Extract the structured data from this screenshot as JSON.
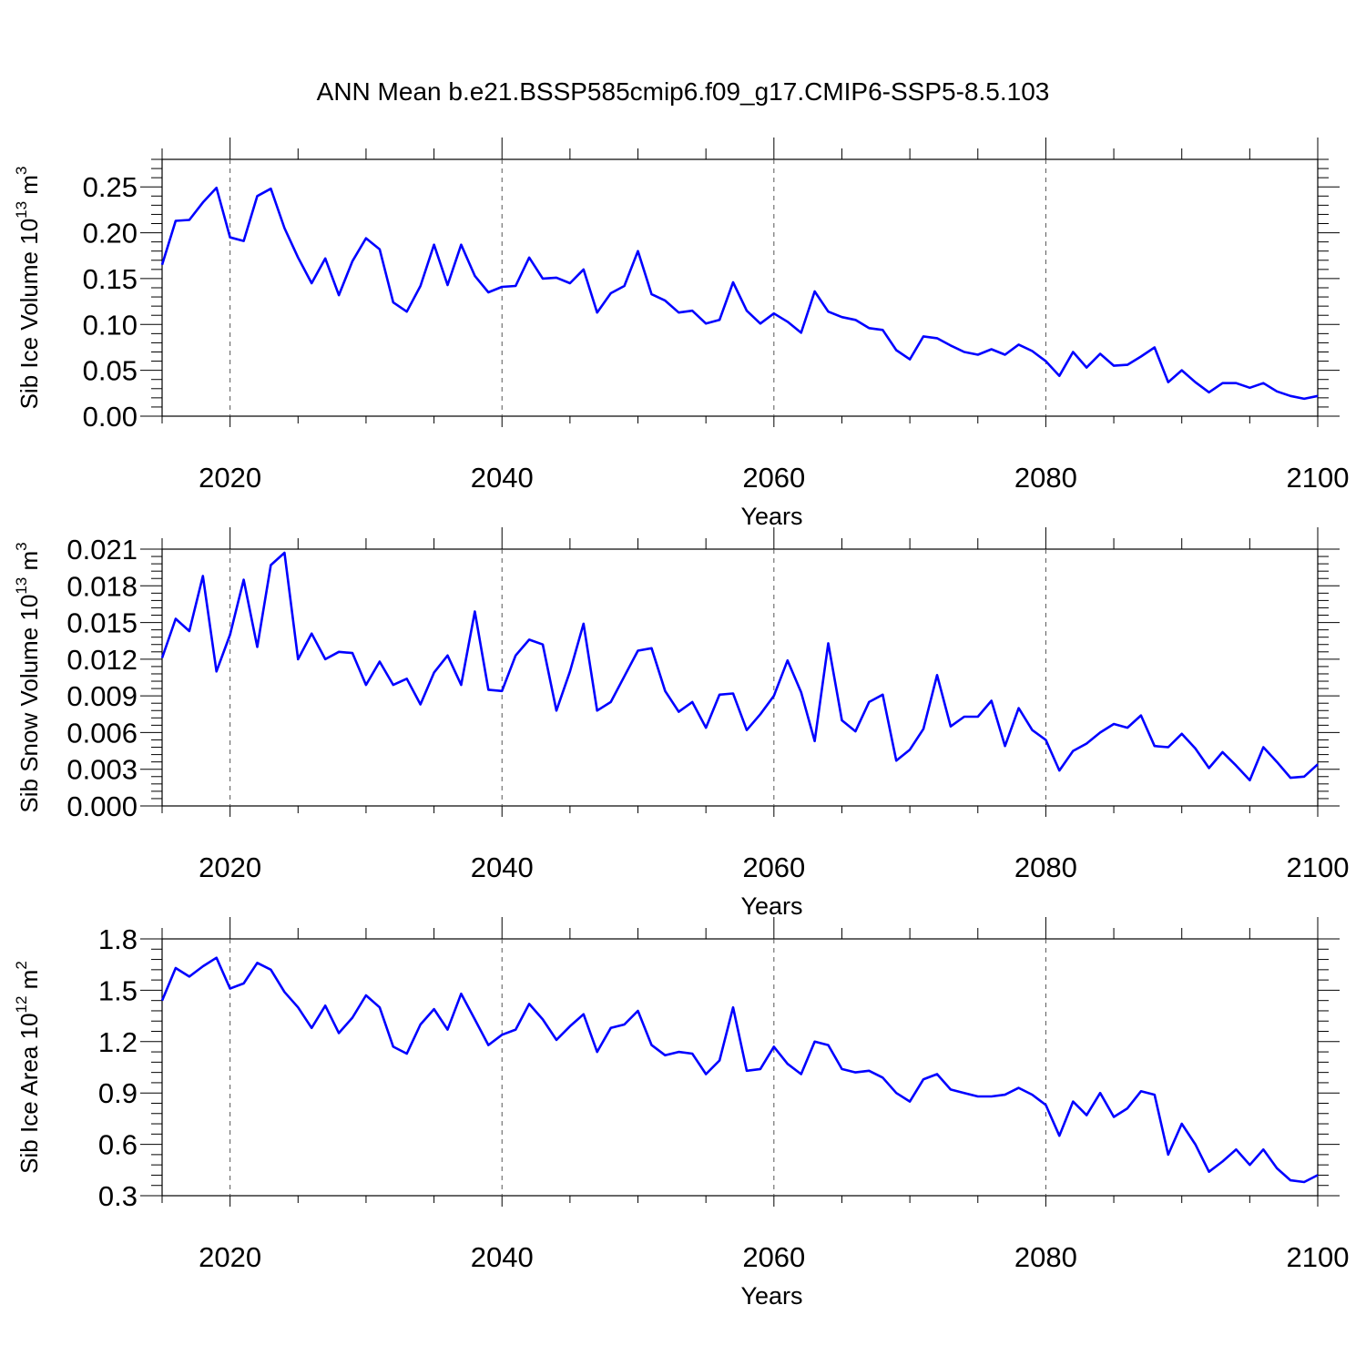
{
  "title": "ANN Mean b.e21.BSSP585cmip6.f09_g17.CMIP6-SSP5-8.5.103",
  "colors": {
    "line": "#0000ff",
    "axis": "#000000",
    "grid": "#555555"
  },
  "chart_data": [
    {
      "type": "line",
      "ylabel": {
        "text": "Sib Ice Volume 10",
        "exp": "13",
        "unit": " m",
        "unit_exp": "3"
      },
      "xlabel": "Years",
      "xlim": [
        2015,
        2100
      ],
      "ylim": [
        0,
        0.28
      ],
      "yticks": [
        0.0,
        0.05,
        0.1,
        0.15,
        0.2,
        0.25
      ],
      "ytick_labels": [
        "0.00",
        "0.05",
        "0.10",
        "0.15",
        "0.20",
        "0.25"
      ],
      "xticks": [
        2020,
        2040,
        2060,
        2080,
        2100
      ],
      "xtick_labels": [
        "2020",
        "2040",
        "2060",
        "2080",
        "2100"
      ],
      "grid": "vertical dashed at major x ticks",
      "x_start": 2015,
      "values": [
        0.165,
        0.213,
        0.214,
        0.233,
        0.249,
        0.195,
        0.191,
        0.24,
        0.248,
        0.205,
        0.173,
        0.145,
        0.172,
        0.132,
        0.169,
        0.194,
        0.182,
        0.124,
        0.114,
        0.142,
        0.187,
        0.143,
        0.187,
        0.153,
        0.135,
        0.141,
        0.142,
        0.173,
        0.15,
        0.151,
        0.145,
        0.16,
        0.113,
        0.134,
        0.142,
        0.18,
        0.133,
        0.126,
        0.113,
        0.115,
        0.101,
        0.105,
        0.146,
        0.115,
        0.101,
        0.112,
        0.103,
        0.091,
        0.136,
        0.114,
        0.108,
        0.105,
        0.096,
        0.094,
        0.072,
        0.062,
        0.087,
        0.085,
        0.077,
        0.07,
        0.067,
        0.073,
        0.067,
        0.078,
        0.071,
        0.06,
        0.044,
        0.07,
        0.053,
        0.068,
        0.055,
        0.056,
        0.065,
        0.075,
        0.037,
        0.05,
        0.037,
        0.026,
        0.036,
        0.036,
        0.031,
        0.036,
        0.027,
        0.022,
        0.019,
        0.022
      ]
    },
    {
      "type": "line",
      "ylabel": {
        "text": "Sib Snow Volume 10",
        "exp": "13",
        "unit": " m",
        "unit_exp": "3"
      },
      "xlabel": "Years",
      "xlim": [
        2015,
        2100
      ],
      "ylim": [
        0,
        0.021
      ],
      "yticks": [
        0.0,
        0.003,
        0.006,
        0.009,
        0.012,
        0.015,
        0.018,
        0.021
      ],
      "ytick_labels": [
        "0.000",
        "0.003",
        "0.006",
        "0.009",
        "0.012",
        "0.015",
        "0.018",
        "0.021"
      ],
      "xticks": [
        2020,
        2040,
        2060,
        2080,
        2100
      ],
      "xtick_labels": [
        "2020",
        "2040",
        "2060",
        "2080",
        "2100"
      ],
      "grid": "vertical dashed at major x ticks",
      "x_start": 2015,
      "values": [
        0.0121,
        0.0153,
        0.0143,
        0.0188,
        0.011,
        0.014,
        0.0185,
        0.013,
        0.0197,
        0.0207,
        0.012,
        0.0141,
        0.012,
        0.0126,
        0.0125,
        0.0099,
        0.0118,
        0.0099,
        0.0104,
        0.0083,
        0.0109,
        0.0123,
        0.0099,
        0.0159,
        0.0095,
        0.0094,
        0.0123,
        0.0136,
        0.0132,
        0.0078,
        0.011,
        0.0149,
        0.0078,
        0.0085,
        0.0106,
        0.0127,
        0.0129,
        0.0094,
        0.0077,
        0.0085,
        0.0064,
        0.0091,
        0.0092,
        0.0062,
        0.0075,
        0.009,
        0.0119,
        0.0093,
        0.0053,
        0.0133,
        0.007,
        0.0061,
        0.0085,
        0.0091,
        0.0037,
        0.0046,
        0.0063,
        0.0107,
        0.0065,
        0.0073,
        0.0073,
        0.0086,
        0.0049,
        0.008,
        0.0062,
        0.0054,
        0.0029,
        0.0045,
        0.0051,
        0.006,
        0.0067,
        0.0064,
        0.0074,
        0.0049,
        0.0048,
        0.0059,
        0.0047,
        0.0031,
        0.0044,
        0.0033,
        0.0021,
        0.0048,
        0.0036,
        0.0023,
        0.0024,
        0.0034
      ]
    },
    {
      "type": "line",
      "ylabel": {
        "text": "Sib Ice Area 10",
        "exp": "12",
        "unit": " m",
        "unit_exp": "2"
      },
      "xlabel": "Years",
      "xlim": [
        2015,
        2100
      ],
      "ylim": [
        0.3,
        1.8
      ],
      "yticks": [
        0.3,
        0.6,
        0.9,
        1.2,
        1.5,
        1.8
      ],
      "ytick_labels": [
        "0.3",
        "0.6",
        "0.9",
        "1.2",
        "1.5",
        "1.8"
      ],
      "xticks": [
        2020,
        2040,
        2060,
        2080,
        2100
      ],
      "xtick_labels": [
        "2020",
        "2040",
        "2060",
        "2080",
        "2100"
      ],
      "grid": "vertical dashed at major x ticks",
      "x_start": 2015,
      "values": [
        1.44,
        1.63,
        1.58,
        1.64,
        1.69,
        1.51,
        1.54,
        1.66,
        1.62,
        1.49,
        1.4,
        1.28,
        1.41,
        1.25,
        1.34,
        1.47,
        1.4,
        1.17,
        1.13,
        1.3,
        1.39,
        1.27,
        1.48,
        1.33,
        1.18,
        1.24,
        1.27,
        1.42,
        1.33,
        1.21,
        1.29,
        1.36,
        1.14,
        1.28,
        1.3,
        1.38,
        1.18,
        1.12,
        1.14,
        1.13,
        1.01,
        1.09,
        1.4,
        1.03,
        1.04,
        1.17,
        1.07,
        1.01,
        1.2,
        1.18,
        1.04,
        1.02,
        1.03,
        0.99,
        0.9,
        0.85,
        0.98,
        1.01,
        0.92,
        0.9,
        0.88,
        0.88,
        0.89,
        0.93,
        0.89,
        0.83,
        0.65,
        0.85,
        0.77,
        0.9,
        0.76,
        0.81,
        0.91,
        0.89,
        0.54,
        0.72,
        0.6,
        0.44,
        0.5,
        0.57,
        0.48,
        0.57,
        0.46,
        0.39,
        0.38,
        0.42
      ]
    }
  ]
}
